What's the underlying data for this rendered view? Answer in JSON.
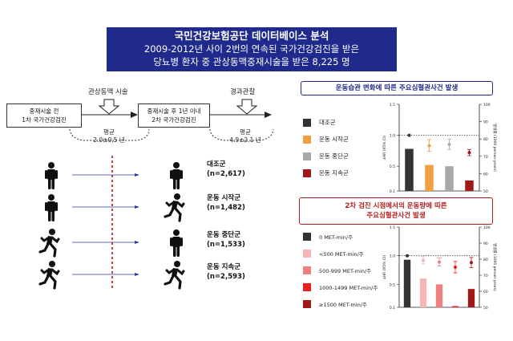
{
  "title": {
    "line1": "국민건강보험공단 데이터베이스 분석",
    "line2": "2009-2012년 사이 2번의 연속된 국가건강검진을 받은",
    "line3": "당뇨병 환자 중 관상동맥중재시술을 받은 8,225 명"
  },
  "timeline": {
    "pci_label": "관상동맥 시술",
    "followup_label": "경과관찰",
    "box1": {
      "line1": "중재시술 전",
      "line2": "1차 국가건강검진"
    },
    "box2": {
      "line1": "중재시술 후 1년 이내",
      "line2": "2차 국가건강검진"
    },
    "mean1": {
      "label": "평균",
      "value": "2.0±0.5 년"
    },
    "mean2": {
      "label": "평균",
      "value": "4.9±2.1 년"
    }
  },
  "groups": [
    {
      "name": "대조군",
      "n": "(n=2,617)"
    },
    {
      "name": "운동 시작군",
      "n": "(n=1,482)"
    },
    {
      "name": "운동 중단군",
      "n": "(n=1,533)"
    },
    {
      "name": "운동 지속군",
      "n": "(n=2,593)"
    }
  ],
  "panel_a": {
    "title": "운동습관 변화에 따른 주요심혈관사건 발생",
    "legend": [
      {
        "label": "대조군",
        "color": "#333333"
      },
      {
        "label": "운동 시작군",
        "color": "#f0a040"
      },
      {
        "label": "운동 중단군",
        "color": "#a8a8a8"
      },
      {
        "label": "운동 지속군",
        "color": "#a01818"
      }
    ]
  },
  "panel_b": {
    "title_line1": "2차 검진 시점에서의 운동량에 따른",
    "title_line2": "주요심혈관사건 발생",
    "legend": [
      {
        "label": "0 MET-min/주",
        "color": "#333333"
      },
      {
        "label": "<500 MET-min/주",
        "color": "#f4b6b6"
      },
      {
        "label": "500-999 MET-min/주",
        "color": "#ee8080"
      },
      {
        "label": "1000-1499 MET-min/주",
        "color": "#e82020"
      },
      {
        "label": "≥1500 MET-min/주",
        "color": "#a01818"
      }
    ]
  },
  "chart_data": [
    {
      "type": "bar",
      "categories": [
        "대조군",
        "운동 시작군",
        "운동 중단군",
        "운동 지속군"
      ],
      "ylabel_left": "aHR (95% CI)",
      "ylabel_right": "발생률 (1000 person-years)",
      "ylim_left": [
        0.1,
        1.5
      ],
      "left_ticks": [
        "1.5",
        "1.0",
        "0.5",
        "0.1"
      ],
      "ylim_right": [
        50,
        100
      ],
      "right_ticks": [
        "100",
        "90",
        "80",
        "70",
        "60",
        "50"
      ],
      "reference_line": 1.0,
      "series": [
        {
          "values": [
            0.78,
            0.52,
            0.5,
            0.27
          ],
          "colors": [
            "#333333",
            "#f0a040",
            "#a8a8a8",
            "#a01818"
          ]
        },
        {
          "values": [
            1.0,
            0.83,
            0.85,
            0.72
          ],
          "ci_low": [
            1.0,
            0.74,
            0.77,
            0.67
          ],
          "ci_high": [
            1.0,
            0.93,
            0.94,
            0.77
          ]
        }
      ]
    },
    {
      "type": "bar",
      "categories": [
        "0 MET-min/주",
        "<500 MET-min/주",
        "500-999 MET-min/주",
        "1000-1499 MET-min/주",
        "≥1500 MET-min/주"
      ],
      "ylabel_left": "aHR (95% CI)",
      "ylabel_right": "발생률 (1000 person-years)",
      "ylim_left": [
        0.1,
        1.5
      ],
      "left_ticks": [
        "1.5",
        "1.0",
        "0.5",
        "0.1"
      ],
      "ylim_right": [
        50,
        100
      ],
      "right_ticks": [
        "100",
        "90",
        "80",
        "70",
        "60",
        "50"
      ],
      "reference_line": 1.0,
      "series": [
        {
          "values": [
            0.93,
            0.6,
            0.5,
            0.12,
            0.42
          ],
          "colors": [
            "#333333",
            "#f4b6b6",
            "#ee8080",
            "#e82020",
            "#a01818"
          ]
        },
        {
          "values": [
            1.0,
            0.92,
            0.89,
            0.8,
            0.88
          ],
          "ci_low": [
            1.0,
            0.86,
            0.82,
            0.7,
            0.79
          ],
          "ci_high": [
            1.0,
            0.99,
            0.96,
            0.9,
            0.97
          ]
        }
      ]
    }
  ]
}
